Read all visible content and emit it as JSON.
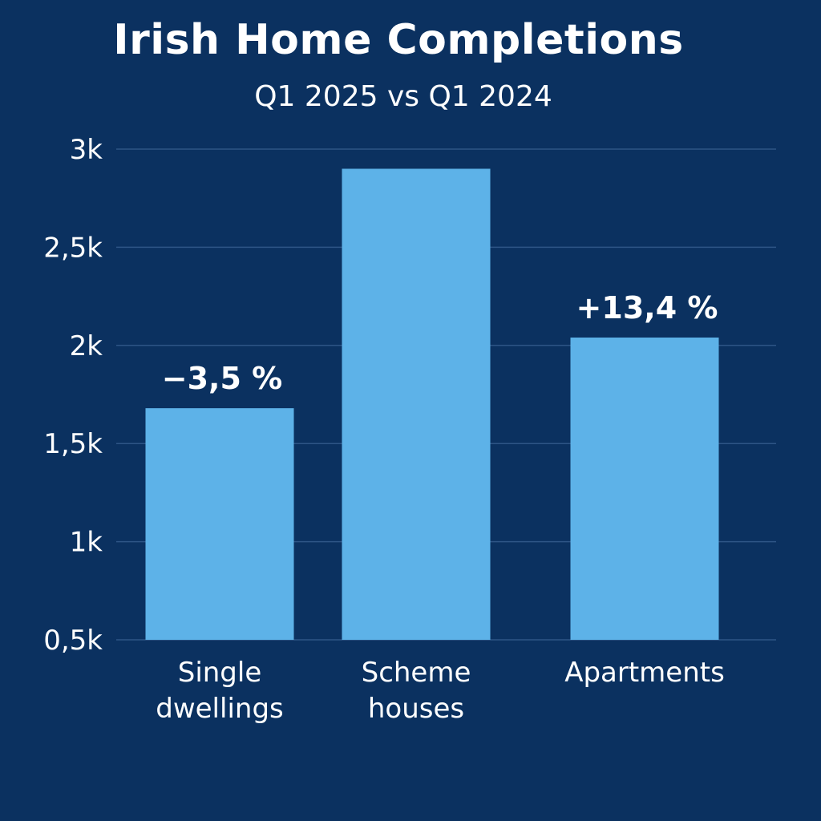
{
  "chart_data": {
    "type": "bar",
    "title": "Irish Home Completions",
    "subtitle": "Q1 2025 vs Q1 2024",
    "categories": [
      [
        "Single",
        "dwellings"
      ],
      [
        "Scheme",
        "houses"
      ],
      [
        "Apartments"
      ]
    ],
    "values": [
      1680,
      2900,
      2040
    ],
    "data_labels": [
      "−3,5 %",
      "",
      "+13,4 %"
    ],
    "y_ticks": [
      500,
      1000,
      1500,
      2000,
      2500,
      3000
    ],
    "y_tick_labels": [
      "0,5k",
      "1k",
      "1,5k",
      "2k",
      "2,5k",
      "3k"
    ],
    "ylim": [
      500,
      3000
    ],
    "grid": true,
    "legend": "none",
    "colors": {
      "background": "#0b3160",
      "bar": "#5db2e8",
      "grid": "#2e5586",
      "text": "#ffffff"
    }
  }
}
